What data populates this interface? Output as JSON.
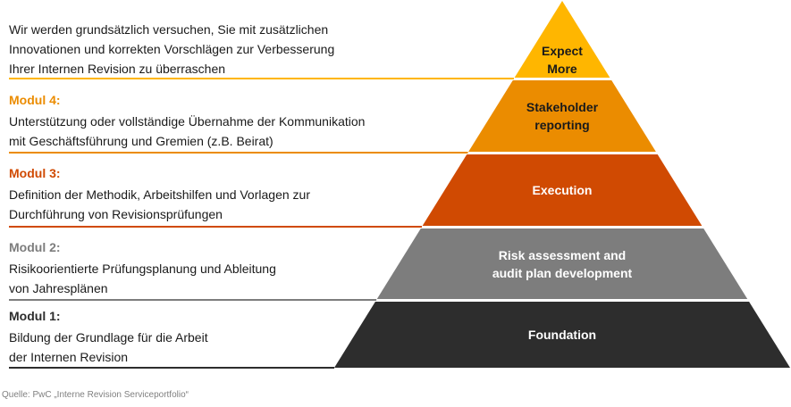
{
  "levels": [
    {
      "id": "expect-more",
      "pyramid_label": [
        "Expect",
        "More"
      ],
      "color": "#FFB600",
      "text_color": "#1a1a1a",
      "module_title": "",
      "module_title_color": "",
      "description": [
        "Wir werden grundsätzlich versuchen, Sie mit zusätzlichen",
        "Innovationen und korrekten Vorschlägen zur Verbesserung",
        "Ihrer Internen Revision zu überraschen"
      ],
      "line_color": "#FFB600"
    },
    {
      "id": "stakeholder-reporting",
      "pyramid_label": [
        "Stakeholder",
        "reporting"
      ],
      "color": "#EB8C00",
      "text_color": "#1a1a1a",
      "module_title": "Modul 4:",
      "module_title_color": "#EB8C00",
      "description": [
        "Unterstützung oder vollständige Übernahme der Kommunikation",
        "mit Geschäftsführung und Gremien (z.B. Beirat)"
      ],
      "line_color": "#EB8C00"
    },
    {
      "id": "execution",
      "pyramid_label": [
        "Execution"
      ],
      "color": "#D04A02",
      "text_color": "#ffffff",
      "module_title": "Modul 3:",
      "module_title_color": "#D04A02",
      "description": [
        "Definition der Methodik, Arbeitshilfen und Vorlagen zur",
        "Durchführung von Revisionsprüfungen"
      ],
      "line_color": "#D04A02"
    },
    {
      "id": "risk-assessment",
      "pyramid_label": [
        "Risk assessment and",
        "audit plan development"
      ],
      "color": "#7D7D7D",
      "text_color": "#ffffff",
      "module_title": "Modul 2:",
      "module_title_color": "#7D7D7D",
      "description": [
        "Risikoorientierte Prüfungsplanung und Ableitung",
        "von Jahresplänen"
      ],
      "line_color": "#7D7D7D"
    },
    {
      "id": "foundation",
      "pyramid_label": [
        "Foundation"
      ],
      "color": "#2D2D2D",
      "text_color": "#ffffff",
      "module_title": "Modul 1:",
      "module_title_color": "#2D2D2D",
      "description": [
        "Bildung der Grundlage für die Arbeit",
        "der Internen Revision"
      ],
      "line_color": "#2D2D2D"
    }
  ],
  "source": "Quelle: PwC „Interne Revision Serviceportfolio“"
}
